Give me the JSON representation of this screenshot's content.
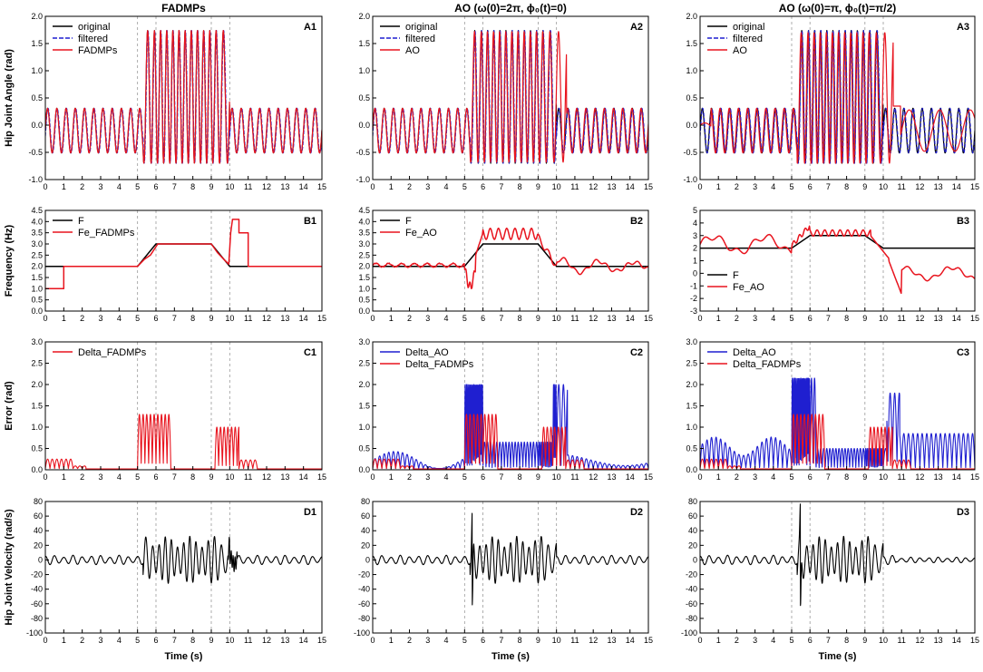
{
  "chart_data": {
    "type": "line",
    "column_titles": [
      "FADMPs",
      "AO (ω(0)=2π, ϕ₀(t)=0)",
      "AO (ω(0)=π, ϕ₀(t)=π/2)"
    ],
    "xlabel": "Time (s)",
    "xlim": [
      0,
      15
    ],
    "xticks": [
      0,
      1,
      2,
      3,
      4,
      5,
      6,
      7,
      8,
      9,
      10,
      11,
      12,
      13,
      14,
      15
    ],
    "vlines": [
      5,
      6,
      9,
      10
    ],
    "colors": {
      "black": "#000000",
      "blue": "#1f1fd0",
      "red": "#e8141e",
      "grid": "#9a9a9a"
    },
    "rows": [
      {
        "ylabel": "Hip Joint Angle (rad)",
        "ylim": [
          -1.0,
          2.0
        ],
        "yticks": [
          -1.0,
          -0.5,
          0.0,
          0.5,
          1.0,
          1.5,
          2.0
        ],
        "ytick_labels": [
          "-1.0",
          "-0.5",
          "0.0",
          "0.5",
          "1.0",
          "1.5",
          "2.0"
        ],
        "panels": [
          {
            "label": "A1",
            "legend": [
              "original",
              "filtered",
              "FADMPs"
            ]
          },
          {
            "label": "A2",
            "legend": [
              "original",
              "filtered",
              "AO"
            ]
          },
          {
            "label": "A3",
            "legend": [
              "original",
              "filtered",
              "AO"
            ]
          }
        ]
      },
      {
        "ylabel": "Frequency (Hz)",
        "panels": [
          {
            "label": "B1",
            "legend": [
              "F",
              "Fe_FADMPs"
            ],
            "ylim": [
              0,
              4.5
            ],
            "yticks": [
              0,
              0.5,
              1,
              1.5,
              2,
              2.5,
              3,
              3.5,
              4,
              4.5
            ],
            "ytick_labels": [
              "0.0",
              "0.5",
              "1.0",
              "1.5",
              "2.0",
              "2.5",
              "3.0",
              "3.5",
              "4.0",
              "4.5"
            ],
            "F_points": [
              [
                0,
                2
              ],
              [
                5,
                2
              ],
              [
                6,
                3
              ],
              [
                9,
                3
              ],
              [
                10,
                2
              ],
              [
                15,
                2
              ]
            ],
            "Fe_steps": [
              [
                0,
                1
              ],
              [
                1,
                1
              ],
              [
                1,
                2
              ],
              [
                5,
                2
              ],
              [
                5.35,
                2.3
              ],
              [
                5.7,
                2.5
              ],
              [
                6.1,
                3
              ],
              [
                9,
                3
              ],
              [
                9.35,
                2.6
              ],
              [
                9.7,
                2.3
              ],
              [
                9.95,
                2.1
              ],
              [
                10.05,
                3.5
              ],
              [
                10.15,
                4.1
              ],
              [
                10.5,
                4.1
              ],
              [
                10.5,
                3.5
              ],
              [
                11,
                3.5
              ],
              [
                11,
                2
              ],
              [
                15,
                2
              ]
            ]
          },
          {
            "label": "B2",
            "legend": [
              "F",
              "Fe_AO"
            ],
            "ylim": [
              0,
              4.5
            ],
            "yticks": [
              0,
              0.5,
              1,
              1.5,
              2,
              2.5,
              3,
              3.5,
              4,
              4.5
            ],
            "ytick_labels": [
              "0.0",
              "0.5",
              "1.0",
              "1.5",
              "2.0",
              "2.5",
              "3.0",
              "3.5",
              "4.0",
              "4.5"
            ],
            "F_points": [
              [
                0,
                2
              ],
              [
                5,
                2
              ],
              [
                6,
                3
              ],
              [
                9,
                3
              ],
              [
                10,
                2
              ],
              [
                15,
                2
              ]
            ]
          },
          {
            "label": "B3",
            "legend": [
              "F",
              "Fe_AO"
            ],
            "ylim": [
              -3,
              5
            ],
            "yticks": [
              -3,
              -2,
              -1,
              0,
              1,
              2,
              3,
              4,
              5
            ],
            "ytick_labels": [
              "-3",
              "-2",
              "-1",
              "0",
              "1",
              "2",
              "3",
              "4",
              "5"
            ],
            "F_points": [
              [
                0,
                2
              ],
              [
                5,
                2
              ],
              [
                6,
                3
              ],
              [
                9,
                3
              ],
              [
                10,
                2
              ],
              [
                15,
                2
              ]
            ]
          }
        ]
      },
      {
        "ylabel": "Error (rad)",
        "ylim": [
          0,
          3.0
        ],
        "yticks": [
          0,
          0.5,
          1,
          1.5,
          2,
          2.5,
          3
        ],
        "ytick_labels": [
          "0.0",
          "0.5",
          "1.0",
          "1.5",
          "2.0",
          "2.5",
          "3.0"
        ],
        "panels": [
          {
            "label": "C1",
            "legend": [
              "Delta_FADMPs"
            ]
          },
          {
            "label": "C2",
            "legend": [
              "Delta_AO",
              "Delta_FADMPs"
            ]
          },
          {
            "label": "C3",
            "legend": [
              "Delta_AO",
              "Delta_FADMPs"
            ]
          }
        ]
      },
      {
        "ylabel": "Hip Joint Velocity (rad/s)",
        "ylim": [
          -100,
          80
        ],
        "yticks": [
          -100,
          -80,
          -60,
          -40,
          -20,
          0,
          20,
          40,
          60,
          80
        ],
        "ytick_labels": [
          "-100",
          "-80",
          "-60",
          "-40",
          "-20",
          "0",
          "20",
          "40",
          "60",
          "80"
        ],
        "panels": [
          {
            "label": "D1",
            "legend": []
          },
          {
            "label": "D2",
            "legend": []
          },
          {
            "label": "D3",
            "legend": []
          }
        ]
      }
    ]
  }
}
